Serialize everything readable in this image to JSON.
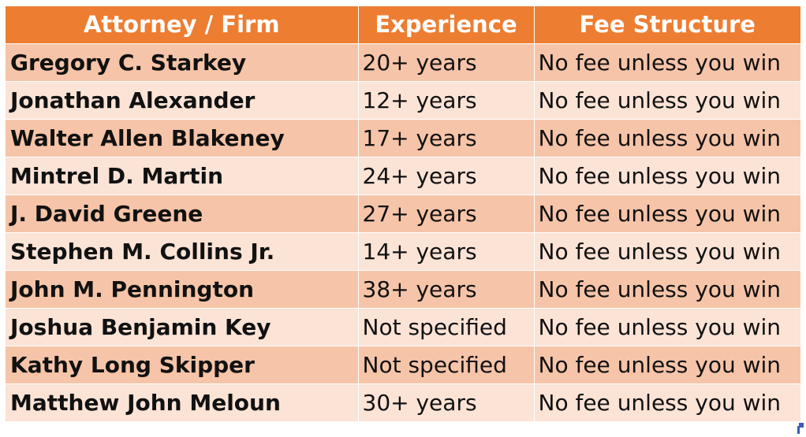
{
  "table": {
    "headers": [
      "Attorney / Firm",
      "Experience",
      "Fee Structure"
    ],
    "rows": [
      {
        "name": "Gregory C. Starkey",
        "experience": "20+ years",
        "fee": "No fee unless you win"
      },
      {
        "name": "Jonathan Alexander",
        "experience": "12+ years",
        "fee": "No fee unless you win"
      },
      {
        "name": "Walter Allen Blakeney",
        "experience": "17+ years",
        "fee": "No fee unless you win"
      },
      {
        "name": "Mintrel D. Martin",
        "experience": "24+ years",
        "fee": "No fee unless you win"
      },
      {
        "name": "J. David Greene",
        "experience": "27+ years",
        "fee": "No fee unless you win"
      },
      {
        "name": "Stephen M. Collins Jr.",
        "experience": "14+ years",
        "fee": "No fee unless you win"
      },
      {
        "name": "John M. Pennington",
        "experience": "38+ years",
        "fee": "No fee unless you win"
      },
      {
        "name": "Joshua Benjamin Key",
        "experience": "Not specified",
        "fee": "No fee unless you win"
      },
      {
        "name": "Kathy Long Skipper",
        "experience": "Not specified",
        "fee": "No fee unless you win"
      },
      {
        "name": "Matthew John Meloun",
        "experience": "30+ years",
        "fee": "No fee unless you win"
      }
    ]
  },
  "colors": {
    "header": "#ed7d31",
    "row_dark": "#f6c4a8",
    "row_light": "#fbe3d6",
    "selection": "#3b5bb5"
  }
}
